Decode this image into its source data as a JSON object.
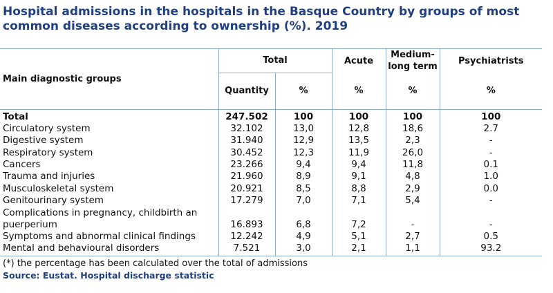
{
  "title": "Hospital admissions in the hospitals in the Basque Country by groups of most common diseases according to ownership (%). 2019",
  "header": {
    "main_group": "Main diagnostic groups",
    "total": "Total",
    "acute": "Acute",
    "medium_long": "Medium-long term",
    "psychiatrists": "Psychiatrists",
    "quantity": "Quantity",
    "pct": "%"
  },
  "rows": [
    {
      "name": "Total",
      "quantity": "247.502",
      "total_pct": "100",
      "acute": "100",
      "medium_long": "100",
      "psych": "100"
    },
    {
      "name": "Circulatory system",
      "quantity": "32.102",
      "total_pct": "13,0",
      "acute": "12,8",
      "medium_long": "18,6",
      "psych": "2.7"
    },
    {
      "name": "Digestive system",
      "quantity": "31.940",
      "total_pct": "12,9",
      "acute": "13,5",
      "medium_long": "2,3",
      "psych": "-"
    },
    {
      "name": "Respiratory system",
      "quantity": "30.452",
      "total_pct": "12,3",
      "acute": "11,9",
      "medium_long": "26,0",
      "psych": "-"
    },
    {
      "name": "Cancers",
      "quantity": "23.266",
      "total_pct": "9,4",
      "acute": "9,4",
      "medium_long": "11,8",
      "psych": "0.1"
    },
    {
      "name": "Trauma and injuries",
      "quantity": "21.960",
      "total_pct": "8,9",
      "acute": "9,1",
      "medium_long": "4,8",
      "psych": "1.0"
    },
    {
      "name": "Musculoskeletal system",
      "quantity": "20.921",
      "total_pct": "8,5",
      "acute": "8,8",
      "medium_long": "2,9",
      "psych": "0.0"
    },
    {
      "name": "Genitourinary system",
      "quantity": "17.279",
      "total_pct": "7,0",
      "acute": "7,1",
      "medium_long": "5,4",
      "psych": "-"
    },
    {
      "name": "Complications in pregnancy, childbirth an puerperium",
      "quantity": "16.893",
      "total_pct": "6,8",
      "acute": "7,2",
      "medium_long": "-",
      "psych": "-"
    },
    {
      "name": "Symptoms and abnormal clinical findings",
      "quantity": "12.242",
      "total_pct": "4,9",
      "acute": "5,1",
      "medium_long": "2,7",
      "psych": "0.5"
    },
    {
      "name": "Mental and behavioural disorders",
      "quantity": "7.521",
      "total_pct": "3,0",
      "acute": "2,1",
      "medium_long": "1,1",
      "psych": "93.2"
    }
  ],
  "footnote": "(*)  the percentage has been calculated over the total of admissions",
  "source": "Source: Eustat. Hospital discharge statistic"
}
